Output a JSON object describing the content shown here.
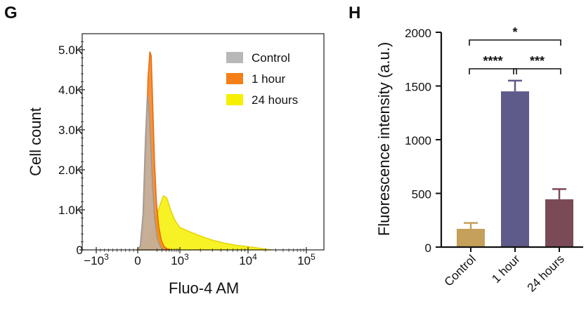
{
  "panels": {
    "g_label": "G",
    "h_label": "H"
  },
  "chart_data": [
    {
      "type": "area",
      "panel": "G",
      "xlabel": "Fluo-4 AM",
      "ylabel": "Cell count",
      "x_scale": "biexponential",
      "x_ticks": [
        {
          "value": -1000,
          "base": "−10",
          "exp": "3"
        },
        {
          "value": 0,
          "base": "0",
          "exp": ""
        },
        {
          "value": 1000,
          "base": "10",
          "exp": "3"
        },
        {
          "value": 10000,
          "base": "10",
          "exp": "4"
        },
        {
          "value": 100000,
          "base": "10",
          "exp": "5"
        }
      ],
      "y_ticks": [
        {
          "value": 0,
          "label": "0"
        },
        {
          "value": 1000,
          "label": "1.0K"
        },
        {
          "value": 2000,
          "label": "2.0K"
        },
        {
          "value": 3000,
          "label": "3.0K"
        },
        {
          "value": 4000,
          "label": "4.0K"
        },
        {
          "value": 5000,
          "label": "5.0K"
        }
      ],
      "ylim": [
        0,
        5400
      ],
      "legend_position": "top-right",
      "series": [
        {
          "name": "24 hours",
          "color": "#f5f000",
          "edge": "#e8d400",
          "points": [
            [
              -20,
              0
            ],
            [
              0,
              20
            ],
            [
              60,
              150
            ],
            [
              150,
              600
            ],
            [
              250,
              1100
            ],
            [
              330,
              1350
            ],
            [
              420,
              1300
            ],
            [
              550,
              1000
            ],
            [
              750,
              720
            ],
            [
              1000,
              560
            ],
            [
              1500,
              430
            ],
            [
              2200,
              320
            ],
            [
              3200,
              230
            ],
            [
              4500,
              170
            ],
            [
              6500,
              120
            ],
            [
              9000,
              90
            ],
            [
              13000,
              60
            ],
            [
              20000,
              20
            ],
            [
              25000,
              0
            ]
          ]
        },
        {
          "name": "1 hour",
          "color": "#f57f17",
          "edge": "#e8690a",
          "points": [
            [
              -10,
              0
            ],
            [
              20,
              80
            ],
            [
              40,
              700
            ],
            [
              60,
              2500
            ],
            [
              80,
              4300
            ],
            [
              100,
              4950
            ],
            [
              115,
              4850
            ],
            [
              135,
              3600
            ],
            [
              160,
              2200
            ],
            [
              190,
              1200
            ],
            [
              230,
              600
            ],
            [
              280,
              250
            ],
            [
              350,
              80
            ],
            [
              450,
              20
            ],
            [
              600,
              0
            ]
          ]
        },
        {
          "name": "Control",
          "color": "#b8b8b8",
          "edge": "#999999",
          "points": [
            [
              -10,
              0
            ],
            [
              15,
              100
            ],
            [
              35,
              900
            ],
            [
              55,
              2800
            ],
            [
              72,
              3850
            ],
            [
              88,
              3600
            ],
            [
              105,
              2800
            ],
            [
              130,
              1700
            ],
            [
              160,
              800
            ],
            [
              200,
              300
            ],
            [
              260,
              80
            ],
            [
              330,
              0
            ]
          ]
        }
      ]
    },
    {
      "type": "bar",
      "panel": "H",
      "categories": [
        "Control",
        "1 hour",
        "24 hours"
      ],
      "values": [
        170,
        1450,
        445
      ],
      "errors": [
        55,
        100,
        95
      ],
      "colors": [
        "#c4a05a",
        "#5e5a8a",
        "#7a4b56"
      ],
      "ylabel": "Fluorescence intensity (a.u.)",
      "ylim": [
        0,
        2000
      ],
      "y_ticks": [
        0,
        500,
        1000,
        1500,
        2000
      ],
      "significance": [
        {
          "from": 0,
          "to": 1,
          "label": "****",
          "level": 1
        },
        {
          "from": 1,
          "to": 2,
          "label": "***",
          "level": 1
        },
        {
          "from": 0,
          "to": 2,
          "label": "*",
          "level": 2
        }
      ]
    }
  ]
}
